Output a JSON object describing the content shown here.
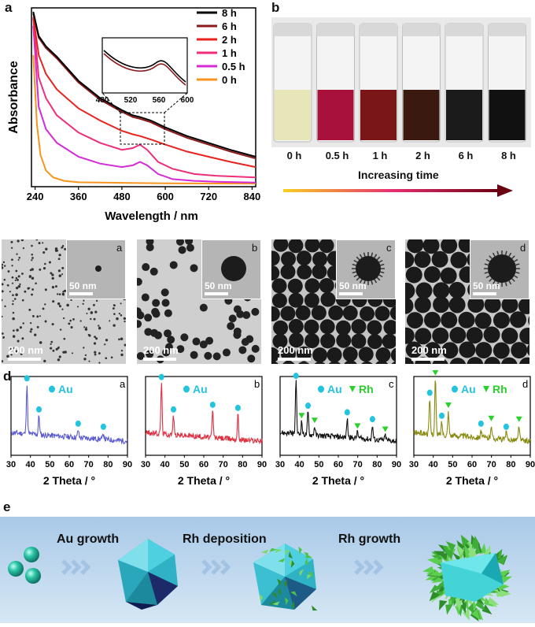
{
  "panel_labels": {
    "a": "a",
    "b": "b",
    "c": "c",
    "d": "d",
    "e": "e"
  },
  "chart_data": [
    {
      "type": "line",
      "ylabel": "Absorbance",
      "xlabel": "Wavelength / nm",
      "xlim": [
        230,
        850
      ],
      "xticks": [
        240,
        360,
        480,
        600,
        720,
        840
      ],
      "legend_position": "top-right",
      "series": [
        {
          "name": "8 h",
          "color": "#000000",
          "x": [
            235,
            250,
            270,
            300,
            360,
            420,
            480,
            510,
            530,
            560,
            600,
            660,
            720,
            780,
            850
          ],
          "y": [
            1.0,
            0.86,
            0.8,
            0.74,
            0.6,
            0.5,
            0.43,
            0.4,
            0.39,
            0.37,
            0.33,
            0.28,
            0.24,
            0.2,
            0.16
          ]
        },
        {
          "name": "6 h",
          "color": "#8b1a1a",
          "x": [
            235,
            250,
            270,
            300,
            360,
            420,
            480,
            510,
            530,
            560,
            600,
            660,
            720,
            780,
            850
          ],
          "y": [
            0.99,
            0.85,
            0.79,
            0.73,
            0.59,
            0.49,
            0.42,
            0.39,
            0.38,
            0.36,
            0.32,
            0.27,
            0.23,
            0.19,
            0.15
          ]
        },
        {
          "name": "2 h",
          "color": "#e8231f",
          "x": [
            235,
            250,
            270,
            300,
            360,
            420,
            480,
            510,
            530,
            560,
            600,
            660,
            720,
            780,
            850
          ],
          "y": [
            0.97,
            0.75,
            0.64,
            0.55,
            0.44,
            0.37,
            0.31,
            0.29,
            0.28,
            0.26,
            0.23,
            0.19,
            0.16,
            0.13,
            0.1
          ]
        },
        {
          "name": "1 h",
          "color": "#ee2e7b",
          "x": [
            235,
            250,
            270,
            300,
            360,
            420,
            480,
            510,
            530,
            550,
            580,
            620,
            680,
            740,
            850
          ],
          "y": [
            0.96,
            0.62,
            0.5,
            0.4,
            0.3,
            0.24,
            0.2,
            0.21,
            0.23,
            0.2,
            0.13,
            0.09,
            0.06,
            0.05,
            0.04
          ]
        },
        {
          "name": "0.5 h",
          "color": "#d42bd6",
          "x": [
            235,
            250,
            270,
            300,
            360,
            420,
            480,
            510,
            530,
            550,
            580,
            620,
            680,
            740,
            850
          ],
          "y": [
            0.92,
            0.45,
            0.32,
            0.24,
            0.16,
            0.12,
            0.1,
            0.11,
            0.13,
            0.11,
            0.06,
            0.03,
            0.02,
            0.015,
            0.01
          ]
        },
        {
          "name": "0 h",
          "color": "#f7941d",
          "x": [
            235,
            245,
            255,
            270,
            290,
            320,
            360,
            420,
            500,
            600,
            700,
            850
          ],
          "y": [
            0.75,
            0.35,
            0.17,
            0.08,
            0.04,
            0.02,
            0.012,
            0.01,
            0.008,
            0.006,
            0.005,
            0.004
          ]
        }
      ],
      "inset": {
        "xticks": [
          480,
          520,
          560,
          600
        ],
        "xlim": [
          480,
          600
        ]
      }
    },
    {
      "type": "line",
      "xlabel": "2 Theta / °",
      "corner": "a",
      "xlim": [
        30,
        90
      ],
      "xticks": [
        30,
        40,
        50,
        60,
        70,
        80,
        90
      ],
      "color": "#5b5bd0",
      "legend": [
        {
          "marker": "circle",
          "text": "Au"
        }
      ],
      "peaks": [
        {
          "x": 38.2,
          "h": 0.78
        },
        {
          "x": 44.4,
          "h": 0.3
        },
        {
          "x": 64.6,
          "h": 0.12
        },
        {
          "x": 77.6,
          "h": 0.1
        }
      ],
      "markers": [
        {
          "x": 38.2,
          "type": "Au"
        },
        {
          "x": 44.4,
          "type": "Au"
        },
        {
          "x": 64.6,
          "type": "Au"
        },
        {
          "x": 77.6,
          "type": "Au"
        }
      ]
    },
    {
      "type": "line",
      "xlabel": "2 Theta / °",
      "corner": "b",
      "xlim": [
        30,
        90
      ],
      "xticks": [
        30,
        40,
        50,
        60,
        70,
        80,
        90
      ],
      "color": "#e03040",
      "legend": [
        {
          "marker": "circle",
          "text": "Au"
        }
      ],
      "peaks": [
        {
          "x": 38.2,
          "h": 0.8
        },
        {
          "x": 44.4,
          "h": 0.3
        },
        {
          "x": 64.6,
          "h": 0.42
        },
        {
          "x": 77.6,
          "h": 0.4
        }
      ],
      "markers": [
        {
          "x": 38.2,
          "type": "Au"
        },
        {
          "x": 44.4,
          "type": "Au"
        },
        {
          "x": 64.6,
          "type": "Au"
        },
        {
          "x": 77.6,
          "type": "Au"
        }
      ]
    },
    {
      "type": "line",
      "xlabel": "2 Theta / °",
      "corner": "c",
      "xlim": [
        30,
        90
      ],
      "xticks": [
        30,
        40,
        50,
        60,
        70,
        80,
        90
      ],
      "color": "#111111",
      "legend": [
        {
          "marker": "circle",
          "text": "Au"
        },
        {
          "marker": "triangle",
          "text": "Rh"
        }
      ],
      "peaks": [
        {
          "x": 38.2,
          "h": 0.82
        },
        {
          "x": 41.1,
          "h": 0.2
        },
        {
          "x": 44.4,
          "h": 0.36
        },
        {
          "x": 47.8,
          "h": 0.14
        },
        {
          "x": 64.6,
          "h": 0.3
        },
        {
          "x": 69.9,
          "h": 0.1
        },
        {
          "x": 77.6,
          "h": 0.22
        },
        {
          "x": 84.2,
          "h": 0.08
        }
      ],
      "markers": [
        {
          "x": 38.2,
          "type": "Au"
        },
        {
          "x": 41.1,
          "type": "Rh"
        },
        {
          "x": 44.4,
          "type": "Au"
        },
        {
          "x": 47.8,
          "type": "Rh"
        },
        {
          "x": 64.6,
          "type": "Au"
        },
        {
          "x": 69.9,
          "type": "Rh"
        },
        {
          "x": 77.6,
          "type": "Au"
        },
        {
          "x": 84.2,
          "type": "Rh"
        }
      ]
    },
    {
      "type": "line",
      "xlabel": "2 Theta / °",
      "corner": "d",
      "xlim": [
        30,
        90
      ],
      "xticks": [
        30,
        40,
        50,
        60,
        70,
        80,
        90
      ],
      "color": "#8a8a10",
      "legend": [
        {
          "marker": "circle",
          "text": "Au"
        },
        {
          "marker": "triangle",
          "text": "Rh"
        }
      ],
      "peaks": [
        {
          "x": 38.2,
          "h": 0.55
        },
        {
          "x": 41.1,
          "h": 0.88
        },
        {
          "x": 44.4,
          "h": 0.2
        },
        {
          "x": 47.8,
          "h": 0.38
        },
        {
          "x": 64.6,
          "h": 0.12
        },
        {
          "x": 69.9,
          "h": 0.22
        },
        {
          "x": 77.6,
          "h": 0.1
        },
        {
          "x": 84.2,
          "h": 0.24
        }
      ],
      "markers": [
        {
          "x": 38.2,
          "type": "Au"
        },
        {
          "x": 41.1,
          "type": "Rh"
        },
        {
          "x": 44.4,
          "type": "Au"
        },
        {
          "x": 47.8,
          "type": "Rh"
        },
        {
          "x": 64.6,
          "type": "Au"
        },
        {
          "x": 69.9,
          "type": "Rh"
        },
        {
          "x": 77.6,
          "type": "Au"
        },
        {
          "x": 84.2,
          "type": "Rh"
        }
      ]
    }
  ],
  "photo_panel": {
    "vials": [
      {
        "label": "0 h",
        "color": "#e6e6b8"
      },
      {
        "label": "0.5 h",
        "color": "#a8123a"
      },
      {
        "label": "1 h",
        "color": "#7a1518"
      },
      {
        "label": "2 h",
        "color": "#3a1a10"
      },
      {
        "label": "6 h",
        "color": "#1b1b1b"
      },
      {
        "label": "8 h",
        "color": "#111111"
      }
    ],
    "arrow_label": "Increasing time",
    "arrow_colors": [
      "#f7d020",
      "#e83070",
      "#6a0010"
    ]
  },
  "tem": [
    {
      "corner": "a",
      "scale_main": "200 nm",
      "scale_inset": "50 nm"
    },
    {
      "corner": "b",
      "scale_main": "200 nm",
      "scale_inset": "50 nm"
    },
    {
      "corner": "c",
      "scale_main": "200 nm",
      "scale_inset": "50 nm"
    },
    {
      "corner": "d",
      "scale_main": "200 nm",
      "scale_inset": "50 nm"
    }
  ],
  "scheme": {
    "steps": [
      "Au growth",
      "Rh deposition",
      "Rh growth"
    ],
    "background": "#b6d3ea",
    "arrow_color": "#9bbde0"
  },
  "colors": {
    "au_marker": "#22c4e0",
    "rh_marker": "#2ad12a"
  }
}
